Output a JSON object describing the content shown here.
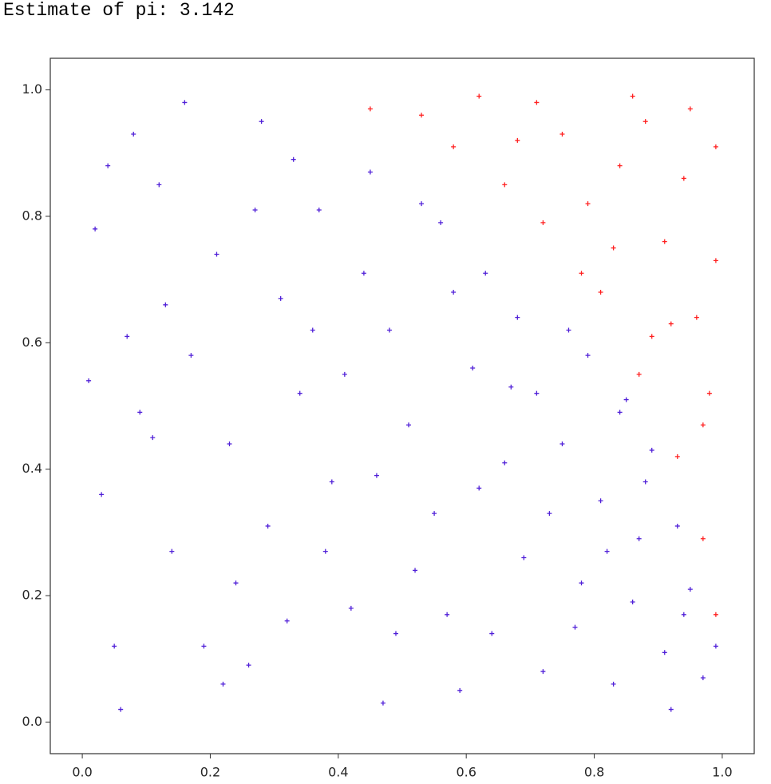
{
  "chart_data": {
    "type": "scatter",
    "title": "Estimate of pi: 3.142",
    "xlim": [
      -0.05,
      1.05
    ],
    "ylim": [
      -0.05,
      1.05
    ],
    "xticks": [
      {
        "value": 0,
        "label": "0.0"
      },
      0.2,
      0.4,
      0.6,
      0.8,
      {
        "value": 1,
        "label": "1.0"
      }
    ],
    "yticks": [
      {
        "value": 0,
        "label": "0.0"
      },
      0.2,
      0.4,
      0.6,
      0.8,
      {
        "value": 1,
        "label": "1.0"
      }
    ],
    "marker": "+",
    "series": [
      {
        "color": "#5020d8",
        "x": [
          0.05,
          0.12,
          0.23,
          0.31,
          0.42,
          0.08,
          0.55,
          0.63,
          0.71,
          0.82,
          0.91,
          0.17,
          0.26,
          0.37,
          0.48,
          0.59,
          0.66,
          0.77,
          0.88,
          0.95,
          0.03,
          0.14,
          0.21,
          0.34,
          0.45,
          0.52,
          0.61,
          0.73,
          0.84,
          0.97,
          0.07,
          0.19,
          0.28,
          0.39,
          0.47,
          0.56,
          0.68,
          0.79,
          0.86,
          0.93,
          0.02,
          0.11,
          0.24,
          0.33,
          0.44,
          0.51,
          0.64,
          0.75,
          0.83,
          0.89,
          0.06,
          0.16,
          0.29,
          0.36,
          0.49,
          0.58,
          0.69,
          0.76,
          0.87,
          0.99,
          0.09,
          0.22,
          0.32,
          0.41,
          0.53,
          0.62,
          0.72,
          0.81,
          0.92,
          0.04,
          0.13,
          0.27,
          0.38,
          0.46,
          0.57,
          0.67,
          0.78,
          0.85,
          0.94,
          0.01
        ],
        "values": [
          0.12,
          0.85,
          0.44,
          0.67,
          0.18,
          0.93,
          0.33,
          0.71,
          0.52,
          0.27,
          0.11,
          0.58,
          0.09,
          0.81,
          0.62,
          0.05,
          0.41,
          0.15,
          0.38,
          0.21,
          0.36,
          0.27,
          0.74,
          0.52,
          0.87,
          0.24,
          0.56,
          0.33,
          0.49,
          0.07,
          0.61,
          0.12,
          0.95,
          0.38,
          0.03,
          0.79,
          0.64,
          0.58,
          0.19,
          0.31,
          0.78,
          0.45,
          0.22,
          0.89,
          0.71,
          0.47,
          0.14,
          0.44,
          0.06,
          0.43,
          0.02,
          0.98,
          0.31,
          0.62,
          0.14,
          0.68,
          0.26,
          0.62,
          0.29,
          0.12,
          0.49,
          0.06,
          0.16,
          0.55,
          0.82,
          0.37,
          0.08,
          0.35,
          0.02,
          0.88,
          0.66,
          0.81,
          0.27,
          0.39,
          0.17,
          0.53,
          0.22,
          0.51,
          0.17,
          0.54
        ]
      },
      {
        "color": "#ff2020",
        "x": [
          0.45,
          0.58,
          0.66,
          0.72,
          0.81,
          0.87,
          0.93,
          0.97,
          0.99,
          0.62,
          0.75,
          0.84,
          0.91,
          0.96,
          0.98,
          0.71,
          0.79,
          0.88,
          0.94,
          0.99,
          0.53,
          0.68,
          0.83,
          0.92,
          0.97,
          0.86,
          0.95,
          0.78,
          0.89,
          0.99
        ],
        "values": [
          0.97,
          0.91,
          0.85,
          0.79,
          0.68,
          0.55,
          0.42,
          0.29,
          0.17,
          0.99,
          0.93,
          0.88,
          0.76,
          0.64,
          0.52,
          0.98,
          0.82,
          0.95,
          0.86,
          0.73,
          0.96,
          0.92,
          0.75,
          0.63,
          0.47,
          0.99,
          0.97,
          0.71,
          0.61,
          0.91
        ]
      }
    ]
  }
}
